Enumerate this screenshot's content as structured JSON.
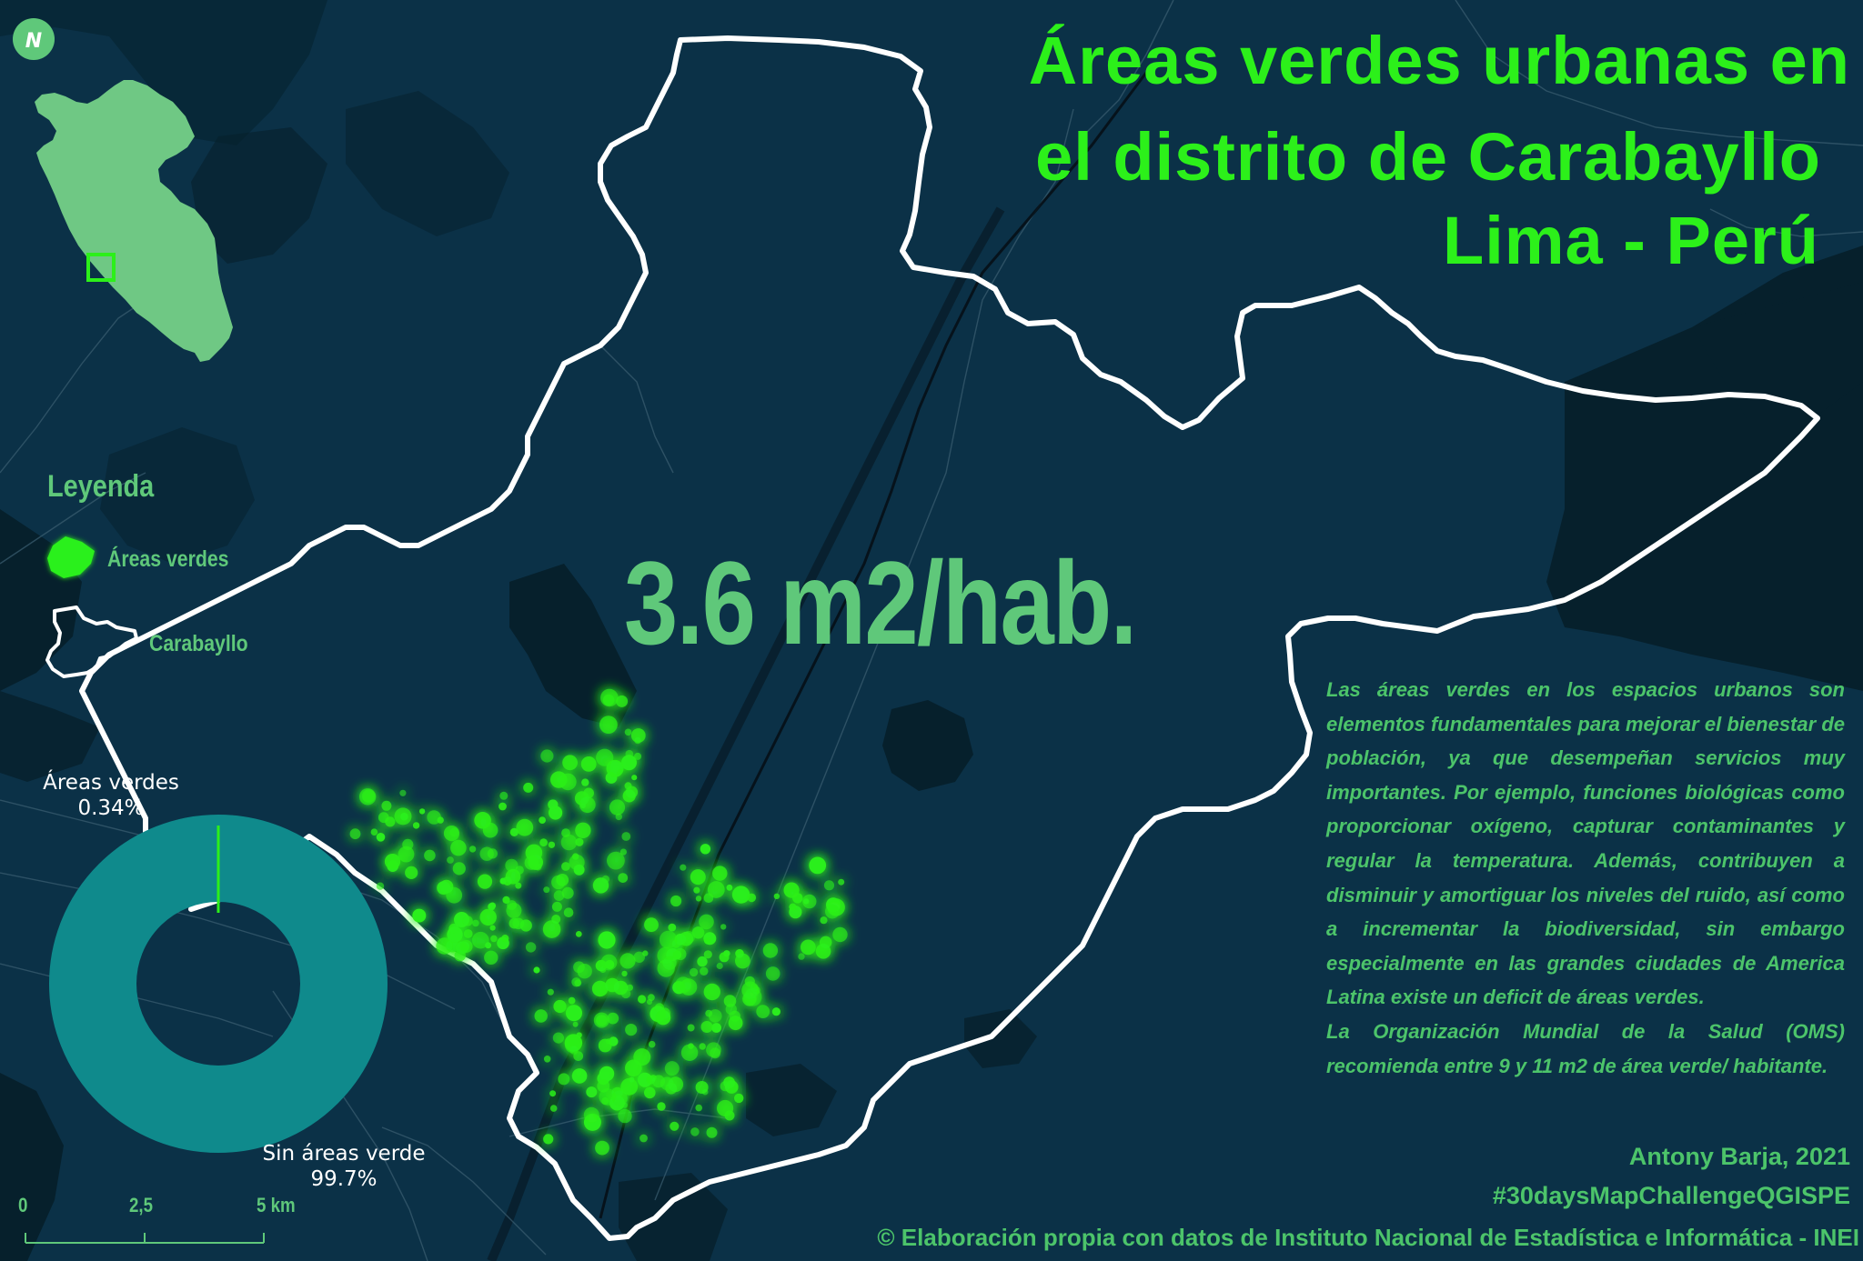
{
  "title": {
    "line1": "Áreas verdes urbanas en",
    "line2": "el distrito de Carabayllo",
    "line3": "Lima - Perú"
  },
  "stat": {
    "value": "3.6 m2/hab."
  },
  "north_arrow": {
    "label": "N",
    "icon": "north-arrow-icon"
  },
  "legend": {
    "title": "Leyenda",
    "items": [
      {
        "label": "Áreas verdes",
        "icon": "green-area-icon",
        "color": "#2cf01a"
      },
      {
        "label": "Carabayllo",
        "icon": "district-outline-icon",
        "color": "#ffffff"
      }
    ]
  },
  "donut": {
    "green_label": "Áreas verdes",
    "green_value": "0.34%",
    "green_fraction": 0.0034,
    "none_label": "Sin áreas verde",
    "none_value": "99.7%",
    "none_fraction": 0.997,
    "colors": {
      "green": "#2cf01a",
      "none": "#0f8a8c"
    }
  },
  "scale_bar": {
    "tick_0": "0",
    "tick_1": "2,5",
    "tick_2": "5 km"
  },
  "description": {
    "paragraph1": "Las áreas verdes en los espacios urbanos son elementos fundamentales para mejorar el bienestar de población, ya que desempeñan servicios muy importantes. Por ejemplo, funciones biológicas como proporcionar oxígeno, capturar contaminantes y regular la temperatura. Además, contribuyen a disminuir y amortiguar los niveles del ruido, así como a incrementar la biodiversidad, sin embargo especialmente en las grandes ciudades de America Latina existe un deficit de áreas verdes.",
    "paragraph2": "La Organización Mundial de la Salud (OMS) recomienda entre 9 y 11 m2 de área verde/ habitante."
  },
  "credits": {
    "author": "Antony Barja, 2021",
    "hashtag": "#30daysMapChallengeQGISPE",
    "source": "© Elaboración propia con datos de Instituto Nacional de Estadística e Informática - INEI"
  },
  "colors": {
    "background": "#0a2a3c",
    "land": "#0b3147",
    "dark_terrain": "#06202c",
    "title_green": "#2cf01a",
    "text_green": "#5fc87a",
    "district_outline": "#ffffff",
    "peru_fill": "#6fc884"
  }
}
